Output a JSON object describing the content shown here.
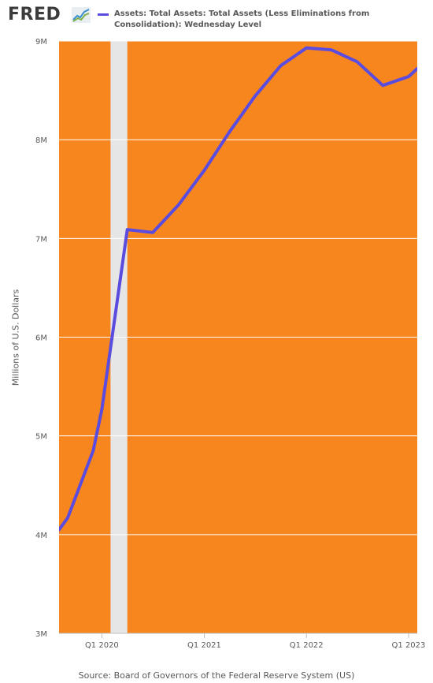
{
  "header": {
    "logo_text": "FRED",
    "logo_icon": "fred-chart-icon",
    "legend_label": "Assets: Total Assets: Total Assets (Less Eliminations from Consolidation): Wednesday Level"
  },
  "colors": {
    "background": "#f8861f",
    "series": "#5b4ce0",
    "recession": "#e6e6e6",
    "grid": "#ffffff"
  },
  "footer": {
    "source": "Source: Board of Governors of the Federal Reserve System (US)"
  },
  "chart_data": {
    "type": "line",
    "title": "",
    "xlabel": "",
    "ylabel": "Millions of U.S. Dollars",
    "ylim": [
      3000000,
      9000000
    ],
    "xlim": [
      "2019-08-01",
      "2023-02-01"
    ],
    "yticks": [
      {
        "value": 3000000,
        "label": "3M"
      },
      {
        "value": 4000000,
        "label": "4M"
      },
      {
        "value": 5000000,
        "label": "5M"
      },
      {
        "value": 6000000,
        "label": "6M"
      },
      {
        "value": 7000000,
        "label": "7M"
      },
      {
        "value": 8000000,
        "label": "8M"
      },
      {
        "value": 9000000,
        "label": "9M"
      }
    ],
    "xticks": [
      {
        "value": "2020-01-01",
        "label": "Q1 2020"
      },
      {
        "value": "2021-01-01",
        "label": "Q1 2021"
      },
      {
        "value": "2022-01-01",
        "label": "Q1 2022"
      },
      {
        "value": "2023-01-01",
        "label": "Q1 2023"
      }
    ],
    "grid": true,
    "recession_shading": [
      {
        "start": "2020-02-01",
        "end": "2020-04-01"
      }
    ],
    "series": [
      {
        "name": "Assets: Total Assets: Total Assets (Less Eliminations from Consolidation): Wednesday Level",
        "x": [
          "2019-08-01",
          "2019-09-01",
          "2019-12-01",
          "2020-01-01",
          "2020-04-01",
          "2020-07-01",
          "2020-10-01",
          "2021-01-01",
          "2021-04-01",
          "2021-07-01",
          "2021-10-01",
          "2022-01-01",
          "2022-04-01",
          "2022-07-01",
          "2022-10-01",
          "2023-01-01",
          "2023-02-01"
        ],
        "values": [
          4050000,
          4170000,
          4850000,
          5270000,
          7090000,
          7060000,
          7340000,
          7690000,
          8080000,
          8440000,
          8750000,
          8930000,
          8910000,
          8790000,
          8550000,
          8640000,
          8720000
        ]
      }
    ]
  }
}
